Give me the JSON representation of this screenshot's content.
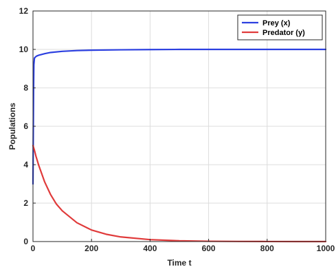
{
  "chart_data": {
    "type": "line",
    "title": "",
    "xlabel": "Time t",
    "ylabel": "Populations",
    "xlim": [
      0,
      1000
    ],
    "ylim": [
      0,
      12
    ],
    "xticks": [
      0,
      200,
      400,
      600,
      800,
      1000
    ],
    "yticks": [
      0,
      2,
      4,
      6,
      8,
      10,
      12
    ],
    "grid": true,
    "legend_position": "top-right",
    "series": [
      {
        "name": "Prey (x)",
        "color": "#2b3fe0",
        "x": [
          0,
          1,
          2,
          3,
          5,
          8,
          12,
          20,
          40,
          60,
          100,
          150,
          200,
          300,
          400,
          500,
          600,
          700,
          800,
          900,
          1000
        ],
        "y": [
          3.0,
          5.5,
          7.8,
          9.2,
          9.55,
          9.6,
          9.65,
          9.7,
          9.78,
          9.84,
          9.9,
          9.94,
          9.96,
          9.98,
          9.99,
          10.0,
          10.0,
          10.0,
          10.0,
          10.0,
          10.0
        ]
      },
      {
        "name": "Predator (y)",
        "color": "#e03a3a",
        "x": [
          0,
          5,
          10,
          20,
          40,
          60,
          80,
          100,
          150,
          200,
          250,
          300,
          400,
          500,
          600,
          700,
          800,
          900,
          1000
        ],
        "y": [
          5.0,
          4.75,
          4.45,
          3.95,
          3.1,
          2.45,
          1.95,
          1.6,
          0.98,
          0.6,
          0.38,
          0.24,
          0.1,
          0.04,
          0.015,
          0.006,
          0.003,
          0.001,
          0.0
        ]
      }
    ]
  }
}
